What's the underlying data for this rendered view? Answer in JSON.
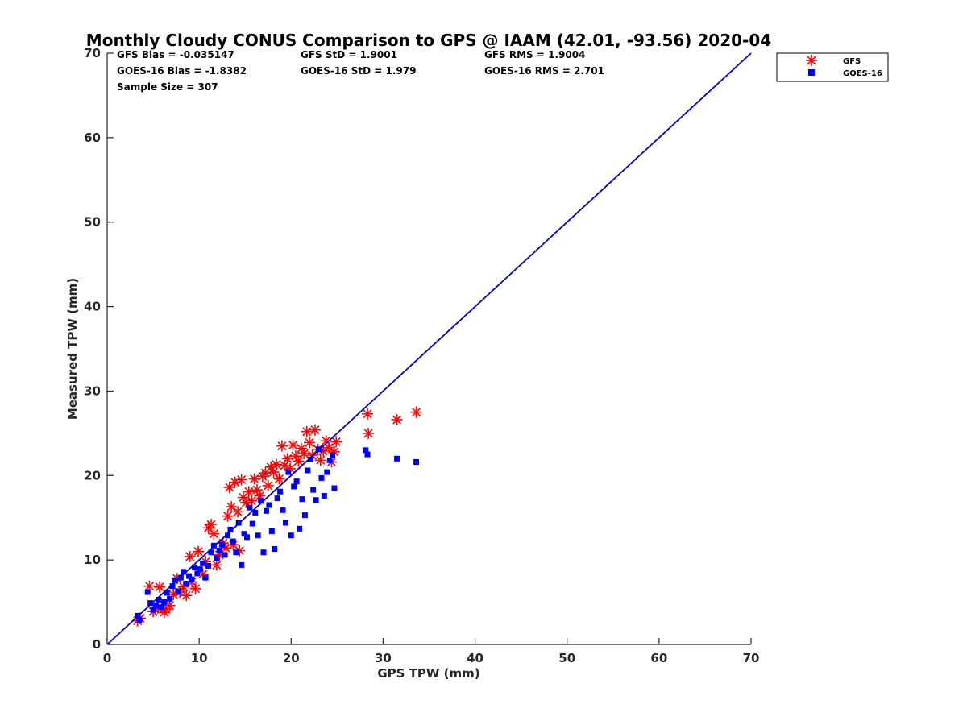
{
  "chart_data": {
    "type": "scatter",
    "title": "Monthly Cloudy CONUS Comparison to GPS @ IAAM (42.01, -93.56) 2020-04",
    "xlabel": "GPS TPW (mm)",
    "ylabel": "Measured TPW (mm)",
    "xlim": [
      0,
      70
    ],
    "ylim": [
      0,
      70
    ],
    "xticks": [
      "0",
      "10",
      "20",
      "30",
      "40",
      "50",
      "60",
      "70"
    ],
    "yticks": [
      "0",
      "10",
      "20",
      "30",
      "40",
      "50",
      "60",
      "70"
    ],
    "grid": false,
    "legend_position": "top-right",
    "stats": {
      "gfs_bias": "GFS Bias = -0.035147",
      "gfs_std": "GFS StD = 1.9001",
      "gfs_rms": "GFS RMS = 1.9004",
      "goes_bias": "GOES-16 Bias = -1.8382",
      "goes_std": "GOES-16 StD = 1.979",
      "goes_rms": "GOES-16 RMS = 2.701",
      "sample_size": "Sample Size = 307"
    },
    "reference_line": {
      "x": [
        0,
        70
      ],
      "y": [
        0,
        70
      ],
      "color": "#0000dd"
    },
    "series": [
      {
        "name": "GFS",
        "marker": "asterisk",
        "color": "#ff0000",
        "points": [
          [
            3.3,
            2.8
          ],
          [
            3.6,
            3.1
          ],
          [
            4.6,
            6.9
          ],
          [
            5.0,
            3.9
          ],
          [
            5.5,
            4.3
          ],
          [
            5.7,
            6.8
          ],
          [
            6.2,
            3.8
          ],
          [
            6.4,
            4.2
          ],
          [
            6.8,
            4.6
          ],
          [
            7.2,
            5.9
          ],
          [
            7.6,
            7.8
          ],
          [
            7.9,
            6.2
          ],
          [
            8.3,
            6.8
          ],
          [
            8.6,
            5.8
          ],
          [
            9.0,
            10.4
          ],
          [
            9.2,
            7.4
          ],
          [
            9.6,
            6.6
          ],
          [
            9.9,
            11.0
          ],
          [
            10.4,
            8.3
          ],
          [
            10.7,
            9.8
          ],
          [
            11.0,
            13.8
          ],
          [
            11.3,
            14.2
          ],
          [
            11.6,
            13.1
          ],
          [
            11.9,
            9.4
          ],
          [
            12.2,
            10.6
          ],
          [
            12.6,
            12.0
          ],
          [
            12.9,
            11.4
          ],
          [
            13.1,
            15.2
          ],
          [
            13.3,
            18.6
          ],
          [
            13.5,
            16.3
          ],
          [
            13.7,
            11.8
          ],
          [
            13.9,
            19.2
          ],
          [
            14.2,
            15.7
          ],
          [
            14.4,
            11.1
          ],
          [
            14.6,
            19.5
          ],
          [
            14.8,
            17.4
          ],
          [
            15.1,
            16.8
          ],
          [
            15.4,
            18.1
          ],
          [
            15.7,
            17.0
          ],
          [
            16.0,
            19.6
          ],
          [
            16.3,
            18.3
          ],
          [
            16.6,
            17.6
          ],
          [
            16.9,
            19.9
          ],
          [
            17.2,
            20.3
          ],
          [
            17.5,
            18.8
          ],
          [
            17.8,
            21.0
          ],
          [
            18.1,
            20.4
          ],
          [
            18.4,
            21.3
          ],
          [
            18.7,
            19.6
          ],
          [
            19.0,
            23.5
          ],
          [
            19.3,
            21.2
          ],
          [
            19.6,
            22.0
          ],
          [
            19.9,
            20.8
          ],
          [
            20.2,
            23.6
          ],
          [
            20.5,
            22.3
          ],
          [
            20.8,
            21.7
          ],
          [
            21.1,
            23.2
          ],
          [
            21.4,
            22.6
          ],
          [
            21.7,
            25.2
          ],
          [
            22.0,
            23.9
          ],
          [
            22.3,
            22.4
          ],
          [
            22.6,
            25.4
          ],
          [
            22.9,
            23.1
          ],
          [
            23.2,
            21.8
          ],
          [
            23.5,
            22.9
          ],
          [
            23.8,
            24.1
          ],
          [
            24.1,
            23.3
          ],
          [
            24.4,
            21.6
          ],
          [
            24.7,
            22.8
          ],
          [
            24.9,
            24.0
          ],
          [
            28.3,
            27.3
          ],
          [
            28.4,
            25.0
          ],
          [
            31.5,
            26.6
          ],
          [
            33.6,
            27.5
          ]
        ]
      },
      {
        "name": "GOES-16",
        "marker": "square",
        "color": "#0000ff",
        "points": [
          [
            3.3,
            3.4
          ],
          [
            3.5,
            2.9
          ],
          [
            4.4,
            6.2
          ],
          [
            4.7,
            4.9
          ],
          [
            5.0,
            4.1
          ],
          [
            5.3,
            4.6
          ],
          [
            5.6,
            5.3
          ],
          [
            5.9,
            4.4
          ],
          [
            6.2,
            5.0
          ],
          [
            6.5,
            6.1
          ],
          [
            6.8,
            5.4
          ],
          [
            7.1,
            6.9
          ],
          [
            7.4,
            7.6
          ],
          [
            7.7,
            6.3
          ],
          [
            8.0,
            7.9
          ],
          [
            8.3,
            8.6
          ],
          [
            8.6,
            7.2
          ],
          [
            8.9,
            8.1
          ],
          [
            9.2,
            7.7
          ],
          [
            9.5,
            9.1
          ],
          [
            9.8,
            8.4
          ],
          [
            10.1,
            8.9
          ],
          [
            10.4,
            9.6
          ],
          [
            10.7,
            7.9
          ],
          [
            11.0,
            9.3
          ],
          [
            11.3,
            10.9
          ],
          [
            11.6,
            11.7
          ],
          [
            11.9,
            10.2
          ],
          [
            12.2,
            11.1
          ],
          [
            12.5,
            11.8
          ],
          [
            12.8,
            10.6
          ],
          [
            13.1,
            12.9
          ],
          [
            13.4,
            13.6
          ],
          [
            13.7,
            12.2
          ],
          [
            14.0,
            10.9
          ],
          [
            14.3,
            14.4
          ],
          [
            14.6,
            9.4
          ],
          [
            14.9,
            13.1
          ],
          [
            15.2,
            12.7
          ],
          [
            15.5,
            16.2
          ],
          [
            15.8,
            14.3
          ],
          [
            16.1,
            15.6
          ],
          [
            16.4,
            12.9
          ],
          [
            16.7,
            17.0
          ],
          [
            17.0,
            10.9
          ],
          [
            17.3,
            15.8
          ],
          [
            17.6,
            16.5
          ],
          [
            17.9,
            13.4
          ],
          [
            18.2,
            11.3
          ],
          [
            18.5,
            17.3
          ],
          [
            18.8,
            18.1
          ],
          [
            19.1,
            15.9
          ],
          [
            19.4,
            14.4
          ],
          [
            19.7,
            20.4
          ],
          [
            20.0,
            12.9
          ],
          [
            20.3,
            18.7
          ],
          [
            20.6,
            19.3
          ],
          [
            20.9,
            13.7
          ],
          [
            21.2,
            17.2
          ],
          [
            21.5,
            15.3
          ],
          [
            21.8,
            20.6
          ],
          [
            22.1,
            21.9
          ],
          [
            22.4,
            18.3
          ],
          [
            22.7,
            17.1
          ],
          [
            23.0,
            23.1
          ],
          [
            23.3,
            19.7
          ],
          [
            23.6,
            17.6
          ],
          [
            23.9,
            20.4
          ],
          [
            24.2,
            21.8
          ],
          [
            24.5,
            22.4
          ],
          [
            24.7,
            18.5
          ],
          [
            28.1,
            23.0
          ],
          [
            28.3,
            22.5
          ],
          [
            31.5,
            22.0
          ],
          [
            33.6,
            21.6
          ]
        ]
      }
    ]
  }
}
